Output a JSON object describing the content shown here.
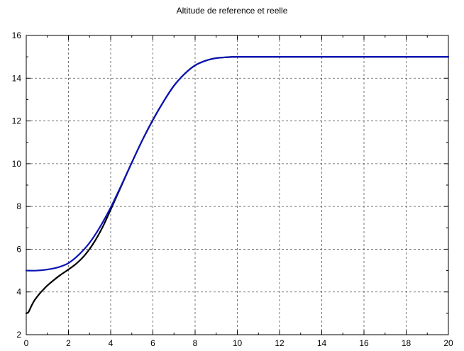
{
  "chart_data": {
    "type": "line",
    "title": "Altitude de reference et reelle",
    "xlabel": "",
    "ylabel": "",
    "xlim": [
      0,
      20
    ],
    "ylim": [
      2,
      16
    ],
    "xticks": [
      0,
      2,
      4,
      6,
      8,
      10,
      12,
      14,
      16,
      18,
      20
    ],
    "yticks": [
      2,
      4,
      6,
      8,
      10,
      12,
      14,
      16
    ],
    "grid": true,
    "legend": "none",
    "series": [
      {
        "color": "#000000",
        "x": [
          0,
          0.1,
          0.2,
          0.3,
          0.4,
          0.6,
          0.8,
          1.0,
          1.3,
          1.6,
          2.0,
          2.4,
          2.8,
          3.2,
          3.6,
          4.0,
          4.5,
          5.0,
          5.5,
          6.0,
          6.5,
          7.0,
          7.5,
          8.0,
          8.5,
          9.0,
          9.5,
          10.0,
          11.0,
          12.0,
          14.0,
          16.0,
          18.0,
          20.0
        ],
        "y": [
          3.0,
          3.05,
          3.25,
          3.45,
          3.62,
          3.88,
          4.1,
          4.3,
          4.55,
          4.78,
          5.05,
          5.35,
          5.75,
          6.3,
          7.0,
          7.85,
          8.95,
          10.05,
          11.1,
          12.05,
          12.9,
          13.65,
          14.2,
          14.6,
          14.82,
          14.94,
          14.98,
          15.0,
          15.0,
          15.0,
          15.0,
          15.0,
          15.0,
          15.0
        ]
      },
      {
        "color": "#0a14b4",
        "x": [
          0,
          0.5,
          1.0,
          1.5,
          2.0,
          2.5,
          3.0,
          3.5,
          4.0,
          4.5,
          5.0,
          5.5,
          6.0,
          6.5,
          7.0,
          7.5,
          8.0,
          8.5,
          9.0,
          9.5,
          10.0,
          11.0,
          12.0,
          14.0,
          16.0,
          18.0,
          20.0
        ],
        "y": [
          5.0,
          5.0,
          5.05,
          5.15,
          5.35,
          5.75,
          6.3,
          7.05,
          7.95,
          8.98,
          10.05,
          11.1,
          12.05,
          12.9,
          13.65,
          14.2,
          14.6,
          14.82,
          14.94,
          14.98,
          15.0,
          15.0,
          15.0,
          15.0,
          15.0,
          15.0,
          15.0
        ]
      }
    ]
  }
}
